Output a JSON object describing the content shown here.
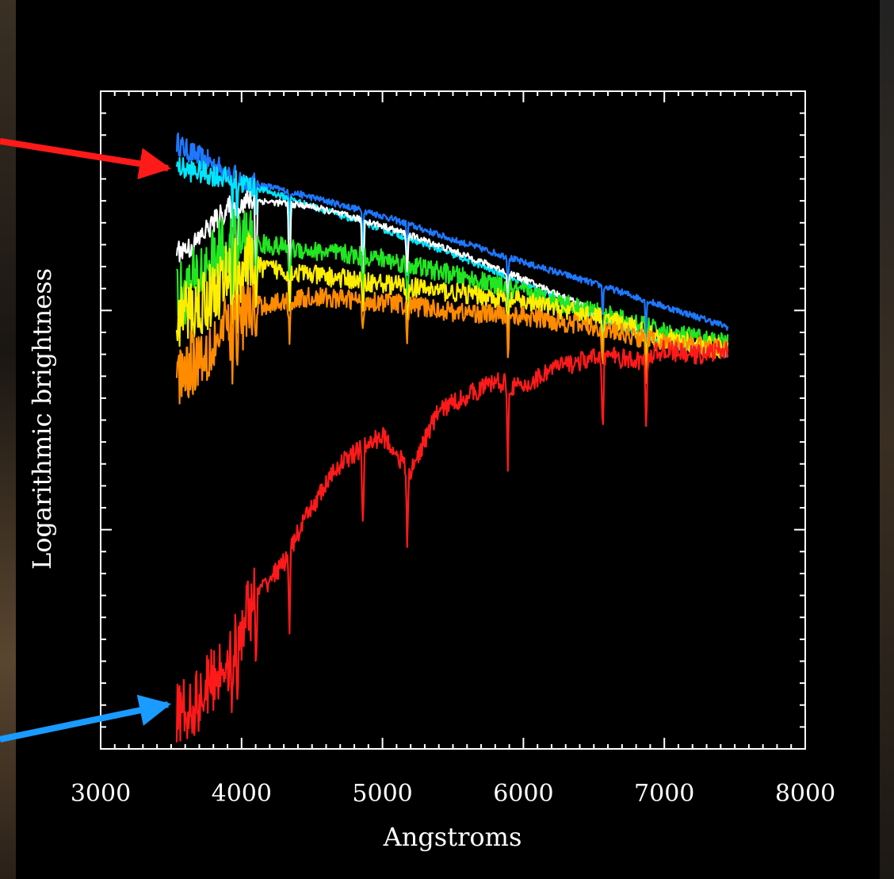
{
  "chart_data": {
    "type": "line",
    "title": "",
    "xlabel": "Angstroms",
    "ylabel": "Logarithmic brightness",
    "xlim": [
      3000,
      8000
    ],
    "xticks": [
      3000,
      4000,
      5000,
      6000,
      7000,
      8000
    ],
    "xtick_labels": [
      "3000",
      "4000",
      "5000",
      "6000",
      "7000",
      "8000"
    ],
    "ytick_labels": [],
    "y_scale": "log",
    "grid": false,
    "background": "#000000",
    "axis_color": "#ffffff",
    "series": [
      {
        "color": "#1e78ff",
        "x": [
          3540,
          3600,
          3800,
          4000,
          4500,
          5000,
          5500,
          6000,
          6500,
          7000,
          7450
        ],
        "y": [
          95,
          92,
          86,
          80,
          74,
          68,
          61,
          55,
          50,
          45,
          41
        ]
      },
      {
        "color": "#00e6ff",
        "x": [
          3540,
          3600,
          3800,
          4000,
          4500,
          5000,
          5500,
          6000,
          6500,
          7000,
          7450
        ],
        "y": [
          85,
          84,
          82,
          79,
          71,
          64,
          57,
          50,
          43,
          38,
          36
        ]
      },
      {
        "color": "#ffffff",
        "x": [
          3540,
          3650,
          3800,
          3950,
          4100,
          4300,
          4500,
          5000,
          5500,
          6000,
          6500,
          7000,
          7450
        ],
        "y": [
          58,
          59,
          66,
          72,
          73,
          72,
          71,
          65,
          58,
          51,
          44,
          39,
          37
        ]
      },
      {
        "color": "#22e622",
        "x": [
          3540,
          3650,
          3800,
          3950,
          4100,
          4300,
          4500,
          5000,
          5500,
          6000,
          6500,
          7000,
          7450
        ],
        "y": [
          47,
          50,
          56,
          61,
          60,
          59,
          58,
          56,
          52,
          48,
          44,
          40,
          38
        ]
      },
      {
        "color": "#ffee00",
        "x": [
          3540,
          3650,
          3800,
          3950,
          4100,
          4300,
          4500,
          5000,
          5500,
          6000,
          6500,
          7000,
          7450
        ],
        "y": [
          43,
          44,
          48,
          53,
          54,
          53,
          52,
          50,
          48,
          46,
          43,
          39,
          37
        ]
      },
      {
        "color": "#ff8c00",
        "x": [
          3540,
          3650,
          3800,
          3950,
          4100,
          4300,
          4500,
          5000,
          5500,
          6000,
          6500,
          7000,
          7450
        ],
        "y": [
          33,
          35,
          38,
          42,
          45,
          46,
          47,
          46,
          44,
          43,
          41,
          38,
          37
        ]
      },
      {
        "color": "#ff1a1a",
        "x": [
          3540,
          3700,
          3900,
          4100,
          4300,
          4500,
          4700,
          5000,
          5200,
          5400,
          5600,
          5800,
          6000,
          6200,
          6400,
          6600,
          6800,
          7000,
          7200,
          7450
        ],
        "y": [
          7,
          7.5,
          9,
          12,
          14,
          18,
          22,
          25,
          21,
          28,
          30,
          32,
          31,
          34,
          35,
          36,
          35,
          37,
          36,
          37
        ]
      }
    ],
    "annotations": [
      {
        "type": "arrow",
        "color": "#ff1a1a",
        "points_to": {
          "x": 3540,
          "y": 95
        }
      },
      {
        "type": "arrow",
        "color": "#1a9bff",
        "points_to": {
          "x": 3540,
          "y": 7
        }
      }
    ]
  }
}
